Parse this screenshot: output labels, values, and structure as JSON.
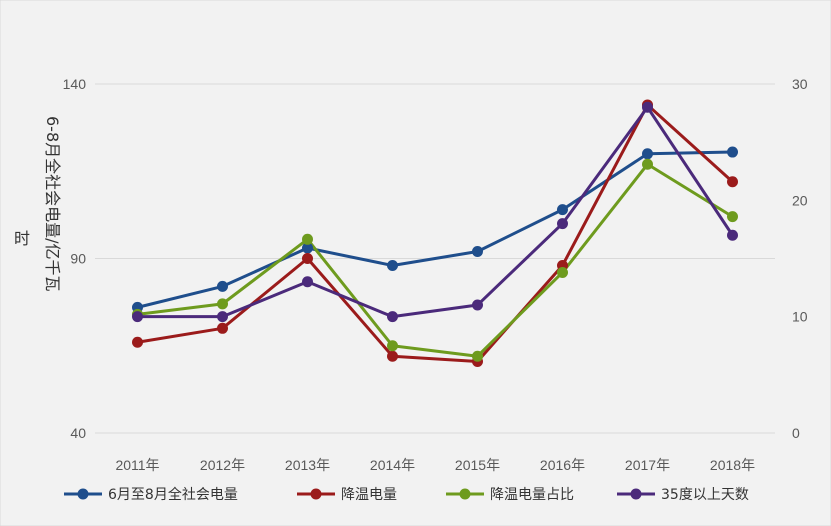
{
  "chart_data": {
    "type": "line",
    "categories": [
      "2011年",
      "2012年",
      "2013年",
      "2014年",
      "2015年",
      "2016年",
      "2017年",
      "2018年"
    ],
    "y_left": {
      "label_lines": [
        "6-8月全社会电量/亿千瓦",
        "时"
      ],
      "range": [
        40,
        140
      ],
      "ticks": [
        "40",
        "90",
        "140"
      ]
    },
    "y_right": {
      "range": [
        0,
        30
      ],
      "ticks": [
        "0",
        "10",
        "20",
        "30"
      ]
    },
    "grid": true,
    "legend_position": "bottom",
    "series": [
      {
        "name": "6月至8月全社会电量",
        "axis": "left",
        "color": "#1f4e8c",
        "values": [
          76,
          82,
          93,
          88,
          92,
          104,
          120,
          120.5
        ]
      },
      {
        "name": "降温电量",
        "axis": "left",
        "color": "#9b1b1b",
        "values": [
          66,
          70,
          90,
          62,
          60.5,
          88,
          134,
          112
        ]
      },
      {
        "name": "降温电量占比",
        "axis": "left",
        "color": "#6e9b1e",
        "values": [
          74,
          77,
          95.5,
          65,
          62,
          86,
          117,
          102
        ]
      },
      {
        "name": "35度以上天数",
        "axis": "right",
        "color": "#4b2a7b",
        "values": [
          10,
          10,
          13,
          10,
          11,
          18,
          28,
          17
        ]
      }
    ]
  }
}
